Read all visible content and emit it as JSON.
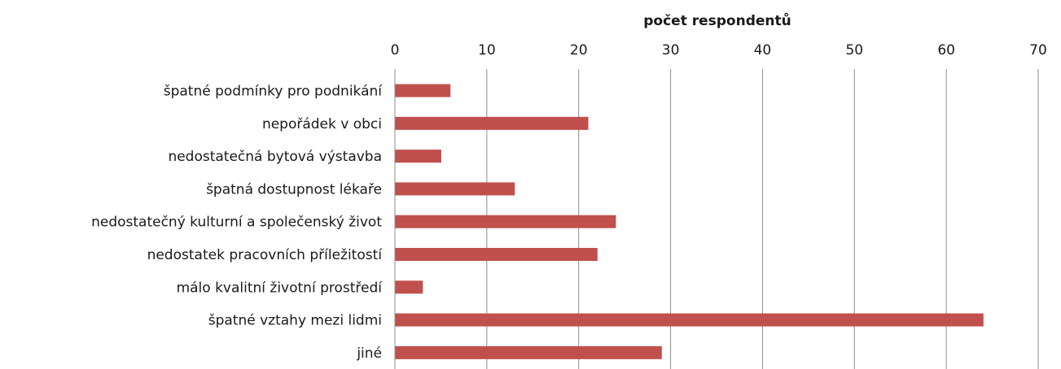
{
  "chart_data": {
    "type": "bar",
    "orientation": "horizontal",
    "title": "",
    "xlabel": "počet respondentů",
    "ylabel": "",
    "xlim": [
      0,
      70
    ],
    "tick_step": 10,
    "grid": true,
    "legend": "none",
    "bar_color": "#c0504d",
    "categories": [
      "špatné podmínky pro podnikání",
      "nepořádek v obci",
      "nedostatečná bytová výstavba",
      "špatná dostupnost lékaře",
      "nedostatečný kulturní a společenský život",
      "nedostatek pracovních příležitostí",
      "málo kvalitní životní prostředí",
      "špatné vztahy mezi lidmi",
      "jiné"
    ],
    "values": [
      6,
      21,
      5,
      13,
      24,
      22,
      3,
      64,
      29
    ],
    "ticks": [
      "0",
      "10",
      "20",
      "30",
      "40",
      "50",
      "60",
      "70"
    ]
  }
}
